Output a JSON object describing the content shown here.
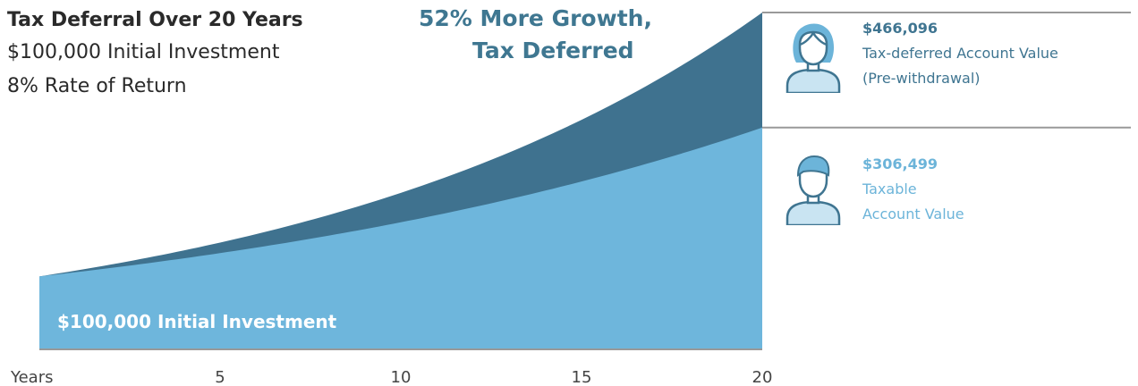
{
  "heading": {
    "title": "Tax Deferral Over 20 Years",
    "line2": "$100,000 Initial Investment",
    "line3": "8% Rate of Return"
  },
  "growth_callout": {
    "line1": "52% More Growth,",
    "line2": "Tax Deferred"
  },
  "tax_deferred": {
    "value": "$466,096",
    "label1": "Tax-deferred Account Value",
    "label2": "(Pre-withdrawal)",
    "icon": "woman-avatar-icon"
  },
  "taxable": {
    "value": "$306,499",
    "label1": "Taxable",
    "label2": "Account Value",
    "icon": "man-avatar-icon"
  },
  "base_label": "$100,000 Initial Investment",
  "colors": {
    "tax_deferred": "#3f728f",
    "taxable": "#6eb6dc",
    "axis": "#999999"
  },
  "chart_data": {
    "type": "area",
    "title": "Tax Deferral Over 20 Years",
    "x_axis_label": "Years",
    "x_ticks": [
      5,
      10,
      15,
      20
    ],
    "x_range": [
      0,
      20
    ],
    "y_range": [
      0,
      466096
    ],
    "initial_investment": 100000,
    "rate_of_return": 0.08,
    "series": [
      {
        "name": "Tax-deferred Account Value",
        "x": [
          0,
          5,
          10,
          15,
          20
        ],
        "values": [
          100000,
          146933,
          215892,
          317217,
          466096
        ]
      },
      {
        "name": "Taxable Account Value",
        "x": [
          0,
          5,
          10,
          15,
          20
        ],
        "values": [
          100000,
          132270,
          174953,
          231422,
          306499
        ]
      }
    ]
  }
}
